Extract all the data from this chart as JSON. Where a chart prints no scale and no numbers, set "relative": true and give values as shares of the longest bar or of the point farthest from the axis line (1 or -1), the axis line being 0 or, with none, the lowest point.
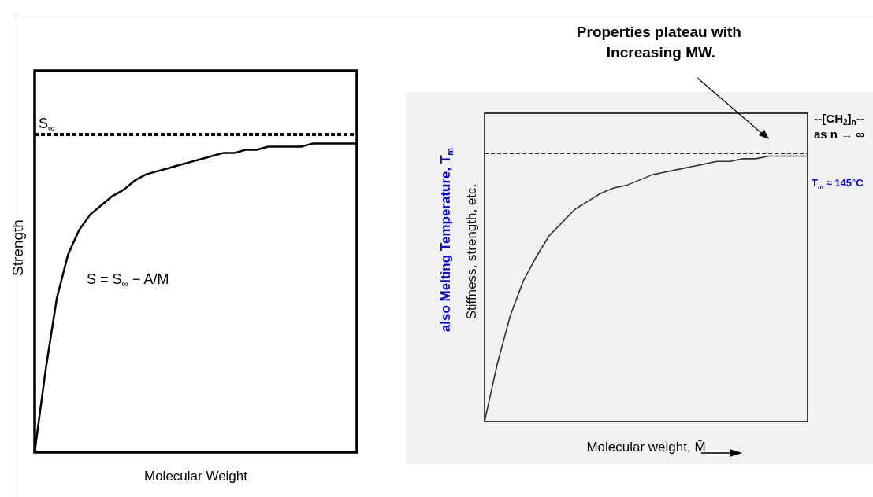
{
  "chart_data": [
    {
      "type": "line",
      "relative": true,
      "xlabel": "Molecular Weight",
      "ylabel": "Strength",
      "color": "#000000",
      "categories": [
        null,
        null,
        null,
        null,
        null,
        null,
        null,
        null,
        null,
        null,
        null,
        null,
        null,
        null,
        null,
        null,
        null,
        null,
        null,
        null,
        null,
        null,
        null,
        null,
        null,
        null,
        null,
        null,
        null,
        null
      ],
      "values": [
        0,
        0.27,
        0.5,
        0.64,
        0.72,
        0.77,
        0.8,
        0.83,
        0.85,
        0.88,
        0.9,
        0.91,
        0.92,
        0.93,
        0.94,
        0.95,
        0.96,
        0.97,
        0.97,
        0.98,
        0.98,
        0.99,
        0.99,
        0.99,
        0.99,
        1,
        1,
        1,
        1,
        1
      ],
      "ref_lines": [
        {
          "axis": "y",
          "value": 1.03,
          "label": "S$_{∞}$",
          "line_style": "dashed",
          "color": "#000000"
        }
      ],
      "annotations": [
        "S = S$_{∞}$ − A/M"
      ]
    },
    {
      "type": "line",
      "relative": true,
      "title": "Properties plateau with Increasing MW.",
      "xlabel": "Molecular weight, M̄",
      "ylabel": "Stiffness, strength, etc.",
      "color": "#333333",
      "categories": [
        null,
        null,
        null,
        null,
        null,
        null,
        null,
        null,
        null,
        null,
        null,
        null,
        null,
        null,
        null,
        null,
        null,
        null,
        null,
        null,
        null,
        null,
        null,
        null,
        null,
        null
      ],
      "values": [
        0,
        0.22,
        0.4,
        0.53,
        0.62,
        0.7,
        0.75,
        0.8,
        0.83,
        0.86,
        0.88,
        0.89,
        0.91,
        0.93,
        0.94,
        0.95,
        0.96,
        0.97,
        0.98,
        0.98,
        0.99,
        0.99,
        1,
        1,
        1,
        1
      ],
      "ref_lines": [
        {
          "axis": "y",
          "value": 1.01,
          "line_style": "dashed",
          "color": "#333333"
        }
      ],
      "annotations": [
        "also Melting Temperature, T$_{m}$",
        "--[CH$_{2}$]$_{n}$--",
        "as n → ∞",
        "T$_{m}$ ≈ 145°C"
      ]
    }
  ]
}
